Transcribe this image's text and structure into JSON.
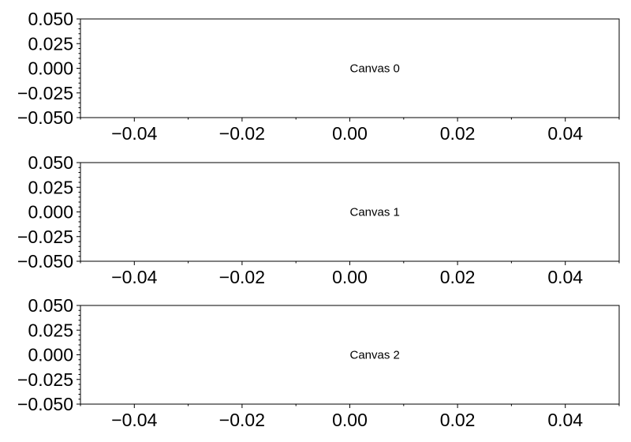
{
  "chart_data": [
    {
      "type": "scatter",
      "title": "",
      "xlabel": "",
      "ylabel": "",
      "xlim": [
        -0.05,
        0.05
      ],
      "ylim": [
        -0.05,
        0.05
      ],
      "xticks": [
        "−0.04",
        "−0.02",
        "0.00",
        "0.02",
        "0.04"
      ],
      "yticks": [
        "0.050",
        "0.025",
        "0.000",
        "−0.025",
        "−0.050"
      ],
      "series": [],
      "annotation": {
        "text": "Canvas 0",
        "x": 0.0,
        "y": 0.0
      },
      "grid": false,
      "minor_ticks": true
    },
    {
      "type": "scatter",
      "title": "",
      "xlabel": "",
      "ylabel": "",
      "xlim": [
        -0.05,
        0.05
      ],
      "ylim": [
        -0.05,
        0.05
      ],
      "xticks": [
        "−0.04",
        "−0.02",
        "0.00",
        "0.02",
        "0.04"
      ],
      "yticks": [
        "0.050",
        "0.025",
        "0.000",
        "−0.025",
        "−0.050"
      ],
      "series": [],
      "annotation": {
        "text": "Canvas 1",
        "x": 0.0,
        "y": 0.0
      },
      "grid": false,
      "minor_ticks": true
    },
    {
      "type": "scatter",
      "title": "",
      "xlabel": "",
      "ylabel": "",
      "xlim": [
        -0.05,
        0.05
      ],
      "ylim": [
        -0.05,
        0.05
      ],
      "xticks": [
        "−0.04",
        "−0.02",
        "0.00",
        "0.02",
        "0.04"
      ],
      "yticks": [
        "0.050",
        "0.025",
        "0.000",
        "−0.025",
        "−0.050"
      ],
      "series": [],
      "annotation": {
        "text": "Canvas 2",
        "x": 0.0,
        "y": 0.0
      },
      "grid": false,
      "minor_ticks": true
    }
  ],
  "colors": {
    "axes": "#000000",
    "background": "#ffffff"
  }
}
